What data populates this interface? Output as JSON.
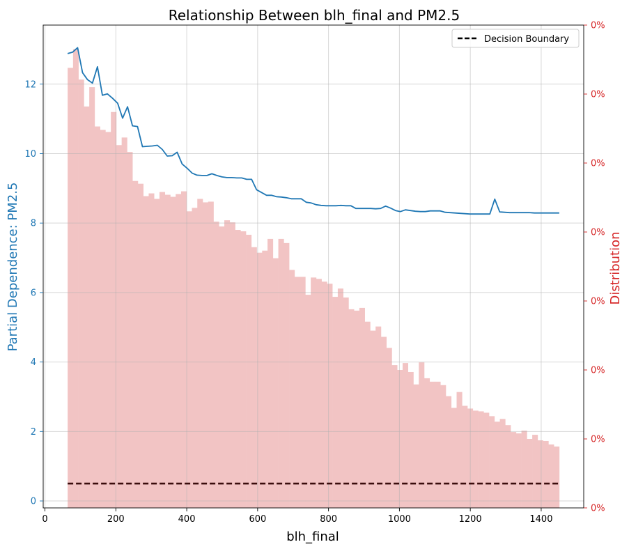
{
  "chart_data": {
    "type": "line",
    "title": "Relationship Between blh_final and PM2.5",
    "xlabel": "blh_final",
    "ylabel": "Partial Dependence: PM2.5",
    "y2label": "Distribution",
    "xlim": [
      -5,
      1520
    ],
    "ylim": [
      -0.2,
      13.7
    ],
    "y2lim": [
      0,
      7
    ],
    "grid": true,
    "legend": {
      "position": "top-right",
      "entries": [
        "Decision Boundary"
      ]
    },
    "colors": {
      "line": "#1f77b4",
      "hist": "#f2c4c4",
      "boundary": "#3a0c0c",
      "right_axis": "#d62728"
    },
    "x_ticks": [
      0,
      200,
      400,
      600,
      800,
      1000,
      1200,
      1400
    ],
    "y_ticks": [
      0,
      2,
      4,
      6,
      8,
      10,
      12
    ],
    "y2_ticks": [
      0,
      1,
      2,
      3,
      4,
      5,
      6,
      7
    ],
    "y2_tick_label": "0%",
    "series": [
      {
        "type": "line",
        "x": [
          64,
          78,
          92,
          106,
          120,
          134,
          148,
          162,
          176,
          190,
          205,
          219,
          233,
          247,
          261,
          275,
          289,
          303,
          317,
          331,
          345,
          359,
          373,
          387,
          401,
          415,
          429,
          443,
          457,
          471,
          485,
          499,
          513,
          527,
          541,
          555,
          569,
          583,
          597,
          611,
          625,
          639,
          653,
          667,
          681,
          695,
          709,
          723,
          737,
          751,
          765,
          779,
          793,
          807,
          821,
          835,
          849,
          863,
          877,
          891,
          905,
          919,
          933,
          947,
          961,
          975,
          989,
          1003,
          1017,
          1031,
          1045,
          1059,
          1073,
          1087,
          1101,
          1115,
          1129,
          1143,
          1157,
          1171,
          1185,
          1199,
          1213,
          1227,
          1241,
          1255,
          1269,
          1283,
          1297,
          1311,
          1325,
          1339,
          1353,
          1367,
          1381,
          1395,
          1409,
          1423,
          1437,
          1451
        ],
        "y": [
          12.88,
          12.92,
          13.05,
          12.33,
          12.13,
          12.03,
          12.5,
          11.68,
          11.72,
          11.6,
          11.45,
          11.02,
          11.35,
          10.8,
          10.78,
          10.2,
          10.21,
          10.22,
          10.24,
          10.12,
          9.93,
          9.94,
          10.04,
          9.7,
          9.58,
          9.44,
          9.38,
          9.37,
          9.37,
          9.42,
          9.37,
          9.33,
          9.31,
          9.31,
          9.3,
          9.3,
          9.26,
          9.26,
          8.96,
          8.88,
          8.8,
          8.8,
          8.76,
          8.75,
          8.73,
          8.7,
          8.7,
          8.7,
          8.6,
          8.58,
          8.53,
          8.51,
          8.5,
          8.5,
          8.5,
          8.51,
          8.5,
          8.5,
          8.42,
          8.42,
          8.42,
          8.42,
          8.41,
          8.42,
          8.49,
          8.43,
          8.36,
          8.33,
          8.38,
          8.36,
          8.34,
          8.33,
          8.33,
          8.35,
          8.35,
          8.35,
          8.31,
          8.3,
          8.29,
          8.28,
          8.27,
          8.26,
          8.26,
          8.26,
          8.26,
          8.26,
          8.69,
          8.32,
          8.31,
          8.3,
          8.3,
          8.3,
          8.3,
          8.3,
          8.29,
          8.29,
          8.29,
          8.29,
          8.29,
          8.29
        ]
      },
      {
        "type": "histogram",
        "bins": [
          64,
          1451
        ],
        "values": [
          6.38,
          6.65,
          6.21,
          5.82,
          6.1,
          5.53,
          5.48,
          5.45,
          5.74,
          5.26,
          5.37,
          5.16,
          4.74,
          4.7,
          4.52,
          4.56,
          4.48,
          4.58,
          4.54,
          4.51,
          4.55,
          4.59,
          4.3,
          4.35,
          4.48,
          4.43,
          4.44,
          4.15,
          4.08,
          4.17,
          4.14,
          4.03,
          4.01,
          3.96,
          3.78,
          3.7,
          3.73,
          3.9,
          3.62,
          3.9,
          3.84,
          3.45,
          3.35,
          3.35,
          3.09,
          3.34,
          3.32,
          3.28,
          3.25,
          3.06,
          3.18,
          3.05,
          2.88,
          2.86,
          2.9,
          2.7,
          2.57,
          2.63,
          2.48,
          2.32,
          2.07,
          2.0,
          2.1,
          1.97,
          1.79,
          2.11,
          1.88,
          1.83,
          1.83,
          1.78,
          1.62,
          1.45,
          1.68,
          1.48,
          1.44,
          1.41,
          1.4,
          1.38,
          1.33,
          1.25,
          1.29,
          1.2,
          1.1,
          1.08,
          1.12,
          1.0,
          1.06,
          0.98,
          0.97,
          0.92,
          0.89
        ]
      },
      {
        "name": "Decision Boundary",
        "type": "line",
        "style": "dashed",
        "x": [
          64,
          1451
        ],
        "y": [
          0.5,
          0.5
        ]
      }
    ]
  }
}
